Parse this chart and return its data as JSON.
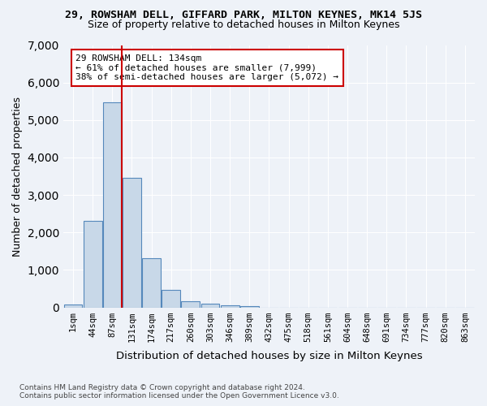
{
  "title_main": "29, ROWSHAM DELL, GIFFARD PARK, MILTON KEYNES, MK14 5JS",
  "title_sub": "Size of property relative to detached houses in Milton Keynes",
  "xlabel": "Distribution of detached houses by size in Milton Keynes",
  "ylabel": "Number of detached properties",
  "footnote1": "Contains HM Land Registry data © Crown copyright and database right 2024.",
  "footnote2": "Contains public sector information licensed under the Open Government Licence v3.0.",
  "bin_labels": [
    "1sqm",
    "44sqm",
    "87sqm",
    "131sqm",
    "174sqm",
    "217sqm",
    "260sqm",
    "303sqm",
    "346sqm",
    "389sqm",
    "432sqm",
    "475sqm",
    "518sqm",
    "561sqm",
    "604sqm",
    "648sqm",
    "691sqm",
    "734sqm",
    "777sqm",
    "820sqm",
    "863sqm"
  ],
  "bar_values": [
    80,
    2300,
    5480,
    3450,
    1310,
    470,
    165,
    95,
    60,
    35,
    0,
    0,
    0,
    0,
    0,
    0,
    0,
    0,
    0,
    0,
    0
  ],
  "bar_color": "#c8d8e8",
  "bar_edge_color": "#5588bb",
  "vline_x": 3,
  "vline_color": "#cc0000",
  "ylim": [
    0,
    7000
  ],
  "annotation_line1": "29 ROWSHAM DELL: 134sqm",
  "annotation_line2": "← 61% of detached houses are smaller (7,999)",
  "annotation_line3": "38% of semi-detached houses are larger (5,072) →",
  "annotation_box_color": "#ffffff",
  "annotation_box_edge": "#cc0000",
  "bg_color": "#eef2f8",
  "grid_color": "#ffffff"
}
